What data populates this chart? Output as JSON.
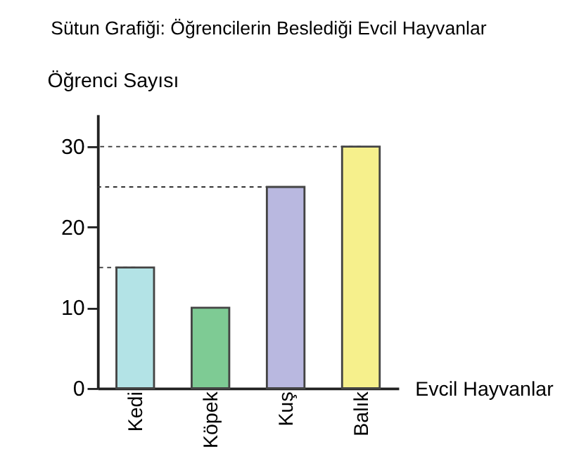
{
  "chart_data": {
    "type": "bar",
    "title": "Sütun Grafiği: Öğrencilerin Beslediği Evcil Hayvanlar",
    "ylabel": "Öğrenci Sayısı",
    "xlabel": "Evcil Hayvanlar",
    "categories": [
      "Kedi",
      "Köpek",
      "Kuş",
      "Balık"
    ],
    "values": [
      15,
      10,
      25,
      30
    ],
    "colors": [
      "#b3e3e6",
      "#7ecb94",
      "#b9b8e0",
      "#f6f08c"
    ],
    "ylim": [
      0,
      34
    ],
    "yticks": [
      0,
      10,
      20,
      30
    ],
    "grid": false,
    "ref_lines": [
      {
        "axis": "y",
        "value": 15,
        "line_style": "dashed",
        "color": "#333333"
      },
      {
        "axis": "y",
        "value": 25,
        "line_style": "dashed",
        "color": "#333333"
      },
      {
        "axis": "y",
        "value": 30,
        "line_style": "dashed",
        "color": "#333333"
      }
    ]
  }
}
